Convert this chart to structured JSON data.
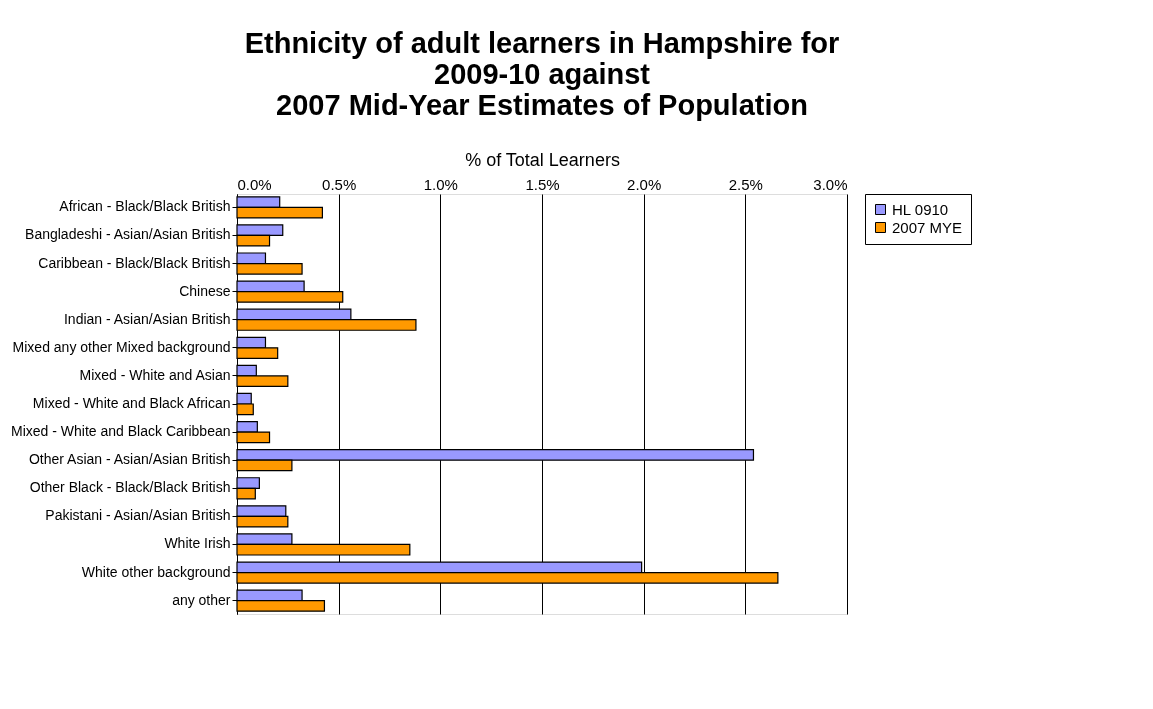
{
  "chart_data": {
    "type": "bar",
    "orientation": "horizontal",
    "title": [
      "Ethnicity of adult learners in Hampshire for",
      "2009-10 against",
      "2007 Mid-Year Estimates of Population"
    ],
    "xlabel": "% of Total Learners",
    "categories": [
      "African - Black/Black British",
      "Bangladeshi - Asian/Asian British",
      "Caribbean - Black/Black British",
      "Chinese",
      "Indian - Asian/Asian British",
      "Mixed any other Mixed background",
      "Mixed - White and Asian",
      "Mixed - White and Black African",
      "Mixed - White and Black Caribbean",
      "Other Asian - Asian/Asian British",
      "Other Black - Black/Black British",
      "Pakistani - Asian/Asian British",
      "White Irish",
      "White other background",
      "any other"
    ],
    "series": [
      {
        "name": "HL 0910",
        "color": "#9999ff",
        "values": [
          0.21,
          0.225,
          0.14,
          0.33,
          0.56,
          0.14,
          0.095,
          0.07,
          0.1,
          2.54,
          0.11,
          0.24,
          0.27,
          1.99,
          0.32
        ]
      },
      {
        "name": "2007 MYE",
        "color": "#ff9900",
        "values": [
          0.42,
          0.16,
          0.32,
          0.52,
          0.88,
          0.2,
          0.25,
          0.08,
          0.16,
          0.27,
          0.09,
          0.25,
          0.85,
          2.66,
          0.43
        ]
      }
    ],
    "xlim": [
      0,
      3
    ],
    "xticks": [
      {
        "value": 0,
        "label": "0.0%"
      },
      {
        "value": 0.5,
        "label": "0.5%"
      },
      {
        "value": 1,
        "label": "1.0%"
      },
      {
        "value": 1.5,
        "label": "1.5%"
      },
      {
        "value": 2,
        "label": "2.0%"
      },
      {
        "value": 2.5,
        "label": "2.5%"
      },
      {
        "value": 3,
        "label": "3.0%"
      }
    ],
    "grid": "x",
    "legend": "right"
  }
}
